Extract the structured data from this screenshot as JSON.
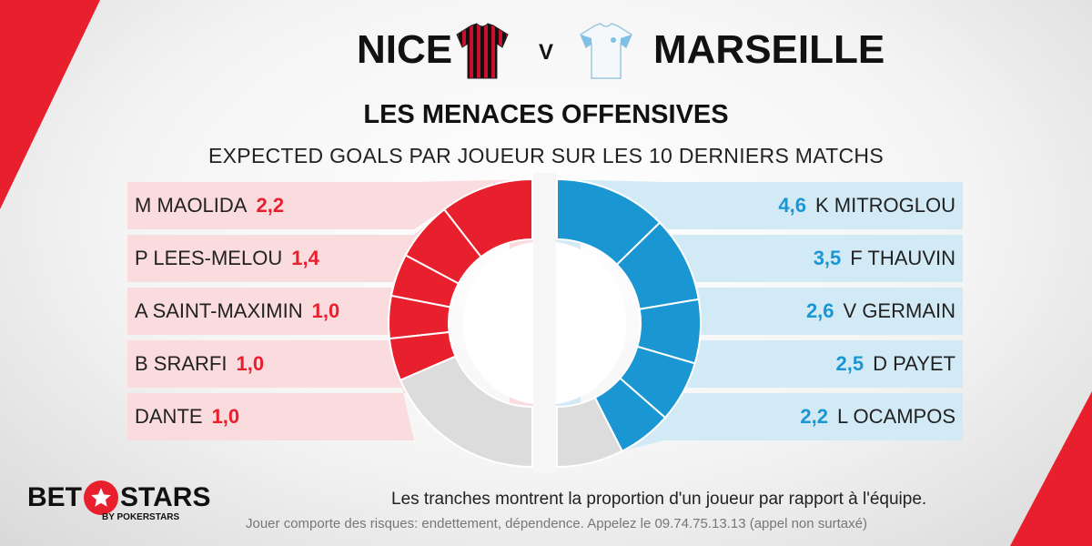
{
  "header": {
    "home_team": "NICE",
    "versus": "V",
    "away_team": "MARSEILLE"
  },
  "title": "LES MENACES OFFENSIVES",
  "subtitle": "EXPECTED GOALS PAR JOUEUR SUR LES 10 DERNIERS MATCHS",
  "colors": {
    "home": "#e8202d",
    "home_bg": "#fadbde",
    "away": "#1a96d2",
    "away_bg": "#d2eaf6",
    "rest": "#dcdcdc"
  },
  "chart_data": {
    "type": "pie",
    "subtype": "split-donut",
    "series": [
      {
        "name": "NICE",
        "side": "left",
        "players": [
          {
            "name": "M MAOLIDA",
            "value": 2.2,
            "label": "2,2"
          },
          {
            "name": "P LEES-MELOU",
            "value": 1.4,
            "label": "1,4"
          },
          {
            "name": "A SAINT-MAXIMIN",
            "value": 1.0,
            "label": "1,0"
          },
          {
            "name": "B SRARFI",
            "value": 1.0,
            "label": "1,0"
          },
          {
            "name": "DANTE",
            "value": 1.0,
            "label": "1,0"
          }
        ],
        "rest_share": 0.37
      },
      {
        "name": "MARSEILLE",
        "side": "right",
        "players": [
          {
            "name": "K MITROGLOU",
            "value": 4.6,
            "label": "4,6"
          },
          {
            "name": "F THAUVIN",
            "value": 3.5,
            "label": "3,5"
          },
          {
            "name": "V GERMAIN",
            "value": 2.6,
            "label": "2,6"
          },
          {
            "name": "D PAYET",
            "value": 2.5,
            "label": "2,5"
          },
          {
            "name": "L OCAMPOS",
            "value": 2.2,
            "label": "2,2"
          }
        ],
        "rest_share": 0.15
      }
    ]
  },
  "footer": {
    "logo_bet": "BET",
    "logo_stars": "STARS",
    "logo_sub": "BY POKERSTARS",
    "note": "Les tranches montrent la proportion d'un joueur par rapport à l'équipe.",
    "disclaimer": "Jouer comporte des risques: endettement, dépendence. Appelez le 09.74.75.13.13 (appel non surtaxé)"
  }
}
